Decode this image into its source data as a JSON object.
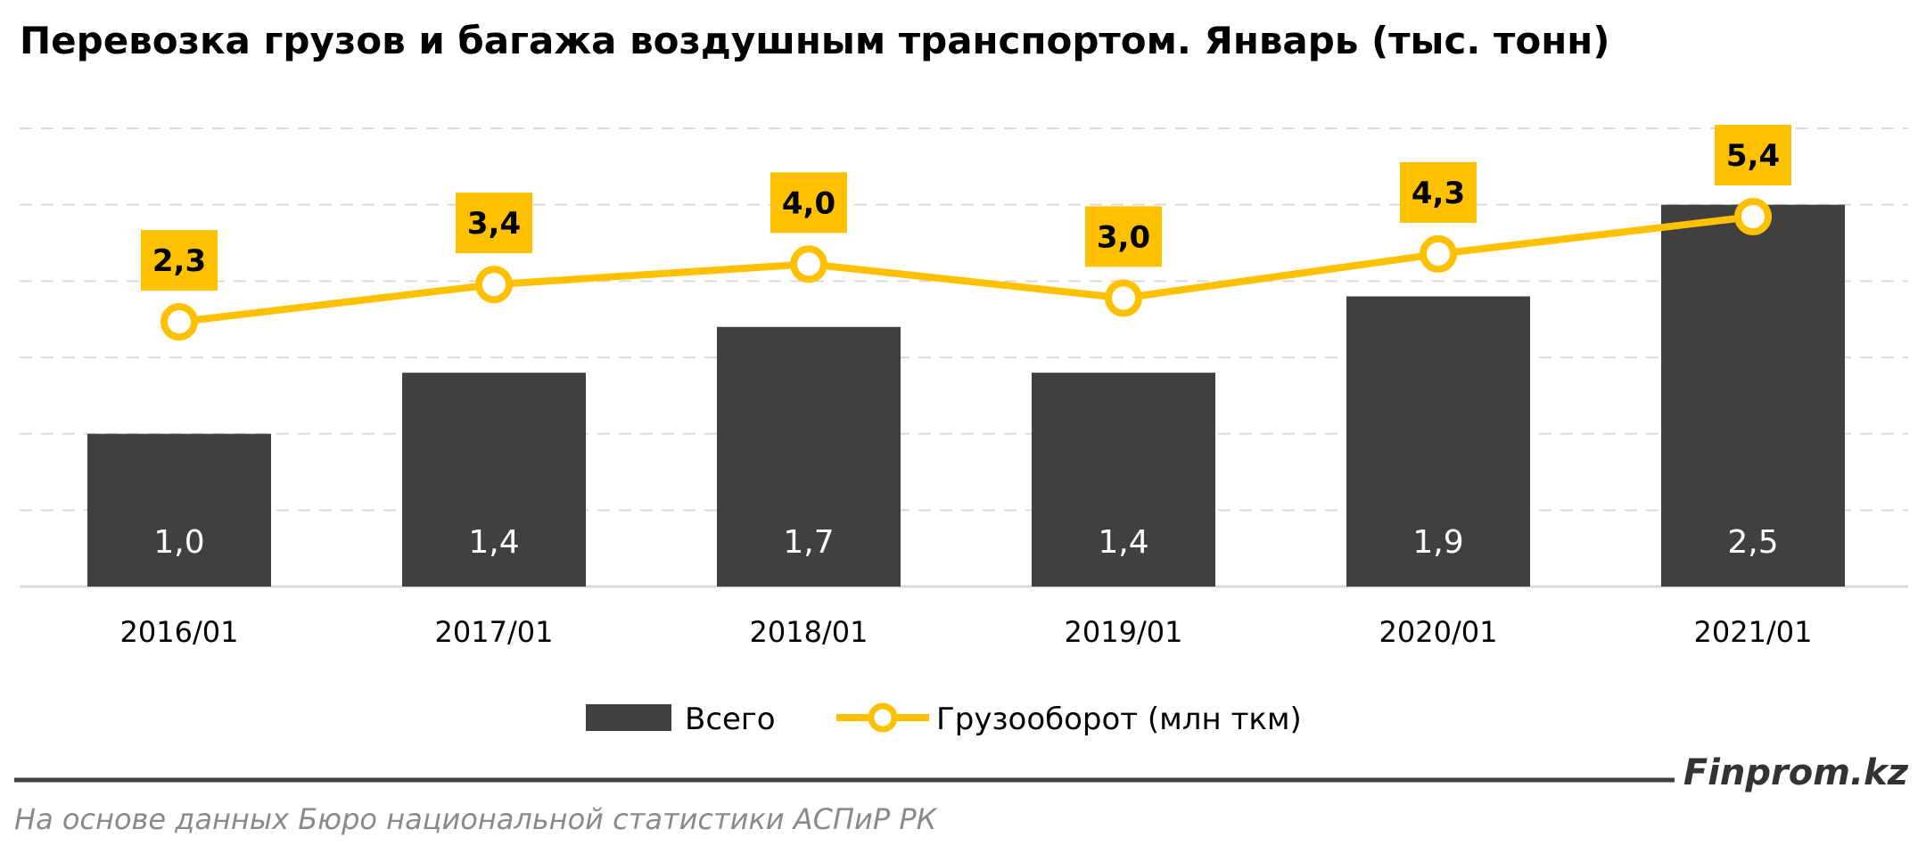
{
  "chart_data": {
    "type": "bar",
    "title": "Перевозка грузов и багажа воздушным транспортом. Январь (тыс. тонн)",
    "categories": [
      "2016/01",
      "2017/01",
      "2018/01",
      "2019/01",
      "2020/01",
      "2021/01"
    ],
    "series": [
      {
        "name": "Всего",
        "type": "bar",
        "values": [
          1.0,
          1.4,
          1.7,
          1.4,
          1.9,
          2.5
        ],
        "labels": [
          "1,0",
          "1,4",
          "1,7",
          "1,4",
          "1,9",
          "2,5"
        ],
        "color": "#404040"
      },
      {
        "name": "Грузооборот (млн ткм)",
        "type": "line",
        "values": [
          2.3,
          3.4,
          4.0,
          3.0,
          4.3,
          5.4
        ],
        "labels": [
          "2,3",
          "3,4",
          "4,0",
          "3,0",
          "4,3",
          "5,4"
        ],
        "color": "#FFC000"
      }
    ],
    "ylim": [
      0,
      3
    ],
    "y2lim": [
      -5.5,
      8.0
    ],
    "grid": true,
    "legend_position": "bottom"
  },
  "footer": {
    "brand": "Finprom.kz",
    "source": "На основе данных Бюро национальной статистики АСПиР РК"
  },
  "colors": {
    "bar": "#404040",
    "line": "#FFC000",
    "grid": "#d9d9d9",
    "axis": "#d9d9d9",
    "rule": "#404040"
  }
}
